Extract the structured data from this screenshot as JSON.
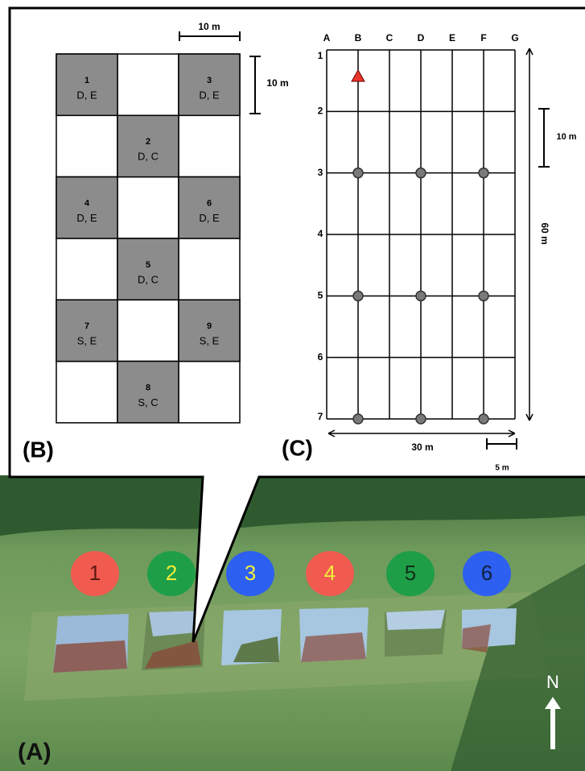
{
  "panel_b": {
    "label": "(B)",
    "scale_h": "10 m",
    "scale_v": "10 m",
    "plots": [
      {
        "number": "1",
        "label": "D, E"
      },
      {
        "number": "2",
        "label": "D, C"
      },
      {
        "number": "3",
        "label": "D, E"
      },
      {
        "number": "4",
        "label": "D, E"
      },
      {
        "number": "5",
        "label": "D, C"
      },
      {
        "number": "6",
        "label": "D, E"
      },
      {
        "number": "7",
        "label": "S, E"
      },
      {
        "number": "8",
        "label": "S, C"
      },
      {
        "number": "9",
        "label": "S, E"
      }
    ]
  },
  "panel_c": {
    "label": "(C)",
    "columns": [
      "A",
      "B",
      "C",
      "D",
      "E",
      "F",
      "G"
    ],
    "rows": [
      "1",
      "2",
      "3",
      "4",
      "5",
      "6",
      "7"
    ],
    "length": "60 m",
    "width": "30 m",
    "scale_v": "10 m",
    "scale_h": "5 m"
  },
  "panel_a": {
    "label": "(A)",
    "north": "N",
    "ponds": [
      {
        "number": "1",
        "color": "#f05a4f",
        "text_color": "#5a1a10"
      },
      {
        "number": "2",
        "color": "#1f9e48",
        "text_color": "#f3ee3a"
      },
      {
        "number": "3",
        "color": "#2d5ff0",
        "text_color": "#f3ee3a"
      },
      {
        "number": "4",
        "color": "#f05a4f",
        "text_color": "#f3ee3a"
      },
      {
        "number": "5",
        "color": "#1f9e48",
        "text_color": "#10301a"
      },
      {
        "number": "6",
        "color": "#2d5ff0",
        "text_color": "#10203a"
      }
    ]
  }
}
